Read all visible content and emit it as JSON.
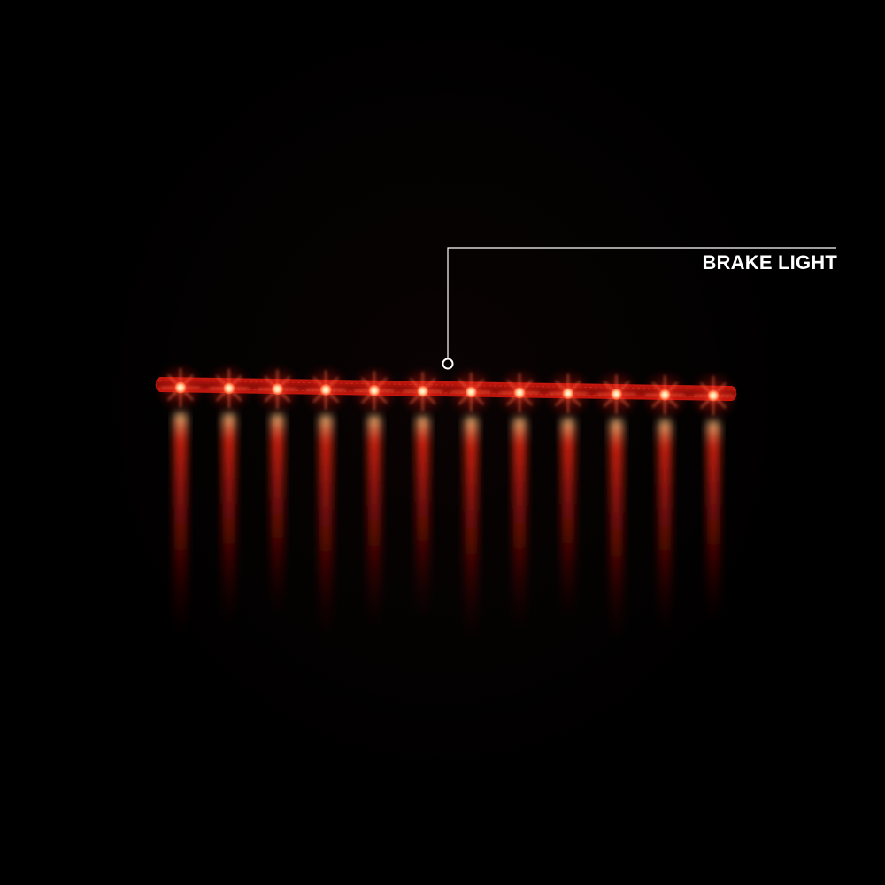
{
  "callout": {
    "label": "BRAKE LIGHT"
  },
  "light_strip": {
    "led_count": 12,
    "led_color": "#ff2a1a",
    "led_core_color": "#fff2c8",
    "strip_color": "#a0120c"
  }
}
